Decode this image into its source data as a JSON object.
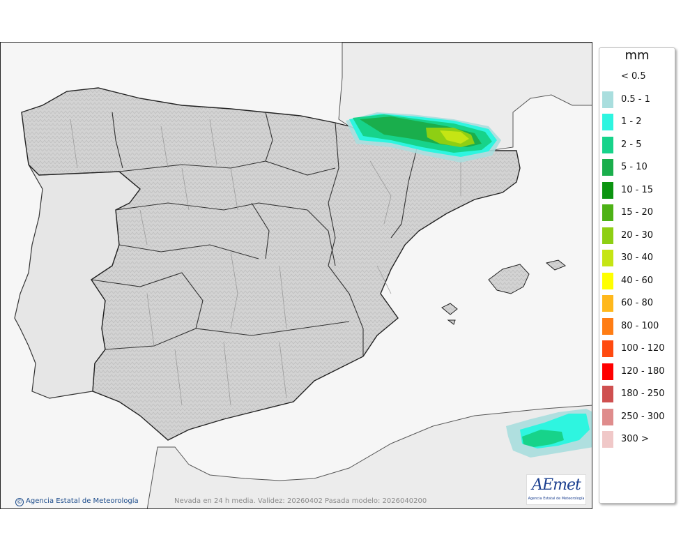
{
  "map": {
    "footnote": "Nevada en 24 h media. Validez: 20260402 Pasada modelo: 2026040200",
    "credit": "Agencia Estatal de Meteorología",
    "credit_icon": "copyright-icon",
    "logo_text": "AEmet",
    "logo_subtext": "Agencia Estatal de Meteorología",
    "colors": {
      "land": "#d6d6d6",
      "sea": "#ffffff",
      "foreign_land": "#ececec",
      "border": "#222222",
      "province_border": "#9a9a9a"
    }
  },
  "legend": {
    "unit": "mm",
    "items": [
      {
        "label": "< 0.5",
        "color": "#ffffff"
      },
      {
        "label": "0.5 - 1",
        "color": "#a9dede"
      },
      {
        "label": "1 - 2",
        "color": "#2ef5e0"
      },
      {
        "label": "2 - 5",
        "color": "#17d38a"
      },
      {
        "label": "5 - 10",
        "color": "#1aae4c"
      },
      {
        "label": "10 - 15",
        "color": "#0b9410"
      },
      {
        "label": "15 - 20",
        "color": "#4db216"
      },
      {
        "label": "20 - 30",
        "color": "#8ecf13"
      },
      {
        "label": "30 - 40",
        "color": "#c5e514"
      },
      {
        "label": "40 - 60",
        "color": "#ffff00"
      },
      {
        "label": "60 - 80",
        "color": "#ffb81c"
      },
      {
        "label": "80 - 100",
        "color": "#ff7d14"
      },
      {
        "label": "100 - 120",
        "color": "#ff4a10"
      },
      {
        "label": "120 - 180",
        "color": "#ff0000"
      },
      {
        "label": "180 - 250",
        "color": "#cf5050"
      },
      {
        "label": "250 - 300",
        "color": "#df8c8c"
      },
      {
        "label": "300 >",
        "color": "#f0c8c8"
      }
    ]
  }
}
